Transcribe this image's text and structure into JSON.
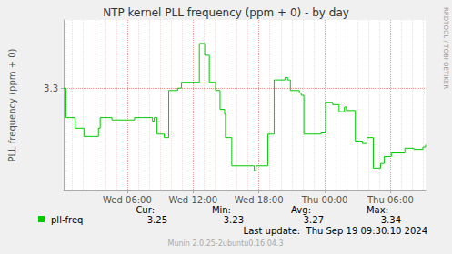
{
  "chart_data": {
    "type": "line",
    "title": "NTP kernel PLL frequency (ppm + 0) - by day",
    "y_label": "PLL frequency (ppm + 0)",
    "x": [
      0.2,
      0.41,
      1.23,
      2.05,
      3.37,
      3.53,
      4.6,
      6.66,
      8.3,
      8.46,
      8.71,
      9.37,
      9.78,
      10.6,
      10.93,
      12.57,
      13.06,
      13.48,
      14.05,
      14.46,
      14.87,
      14.95,
      15.53,
      17.58,
      17.75,
      18.82,
      19.39,
      20.38,
      20.62,
      20.87,
      21.69,
      21.86,
      22.1,
      23.66,
      24.08,
      24.73,
      25.31,
      25.8,
      25.97,
      26.79,
      27.44,
      27.86,
      28.43,
      29.09,
      29.42,
      30.07,
      31.31,
      32.13,
      32.95,
      33.2
    ],
    "series": [
      {
        "name": "pll-freq",
        "color": "#00cc00",
        "line_style": "step",
        "values": [
          3.3,
          3.275,
          3.266,
          3.259,
          3.266,
          3.275,
          3.273,
          3.275,
          3.272,
          3.275,
          3.261,
          3.258,
          3.298,
          3.3,
          3.305,
          3.338,
          3.328,
          3.305,
          3.298,
          3.282,
          3.278,
          3.258,
          3.234,
          3.23,
          3.234,
          3.261,
          3.307,
          3.309,
          3.307,
          3.298,
          3.296,
          3.294,
          3.261,
          3.262,
          3.288,
          3.286,
          3.28,
          3.284,
          3.281,
          3.255,
          3.253,
          3.258,
          3.232,
          3.236,
          3.242,
          3.245,
          3.249,
          3.248,
          3.25,
          3.252
        ],
        "stats": [
          3.25,
          3.23,
          3.27,
          3.34
        ]
      }
    ],
    "stat_labels": [
      "Cur:",
      "Min:",
      "Avg:",
      "Max:"
    ],
    "xlim": [
      0.2,
      33.2
    ],
    "xticks": [
      {
        "value": 6,
        "label": "Wed 06:00"
      },
      {
        "value": 12,
        "label": "Wed 12:00"
      },
      {
        "value": 18,
        "label": "Wed 18:00"
      },
      {
        "value": 24,
        "label": "Thu 00:00"
      },
      {
        "value": 30,
        "label": "Thu 06:00"
      }
    ],
    "ylim": [
      3.213,
      3.358
    ],
    "yticks": [
      3.3
    ],
    "grid": true,
    "footer": "Last update:  Thu Sep 19 09:30:10 2024",
    "credits": "Munin 2.0.25-2ubuntu0.16.04.3",
    "side_text": "RRDTOOL / TOBI OETIKER"
  }
}
